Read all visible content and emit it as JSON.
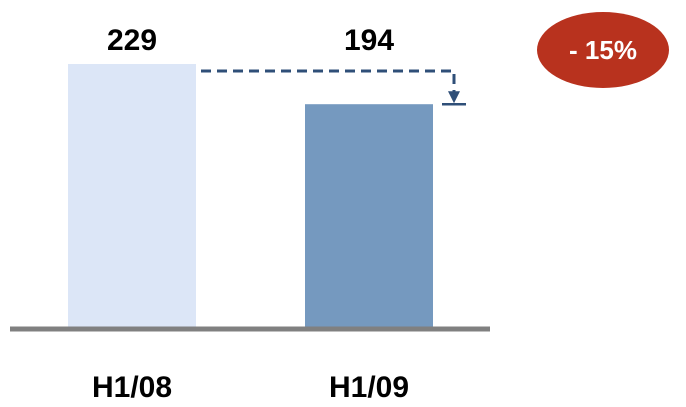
{
  "chart_data": {
    "type": "bar",
    "categories": [
      "H1/08",
      "H1/09"
    ],
    "values": [
      229,
      194
    ],
    "value_labels": [
      "229",
      "194"
    ],
    "ylim": [
      0,
      229
    ],
    "grid": false,
    "bar_colors": [
      "#dce6f7",
      "#7599bf"
    ],
    "axis_color": "#808080",
    "annotation": {
      "text": "- 15%",
      "color": "#b8321e",
      "connector_color": "#2f4f78"
    }
  }
}
